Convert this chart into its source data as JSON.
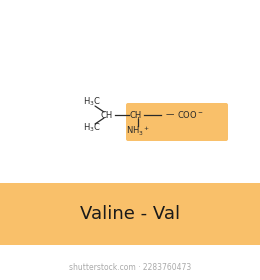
{
  "bg_color": "#ffffff",
  "banner_color": "#F9C06A",
  "highlight_color": "#F9C06A",
  "title_text": "Valine - Val",
  "title_fontsize": 13,
  "title_color": "#1a1a1a",
  "watermark": "shutterstock.com · 2283760473",
  "watermark_color": "#aaaaaa",
  "watermark_fontsize": 5.5,
  "mol_color": "#2a2a2a",
  "mol_fontsize": 6.0
}
